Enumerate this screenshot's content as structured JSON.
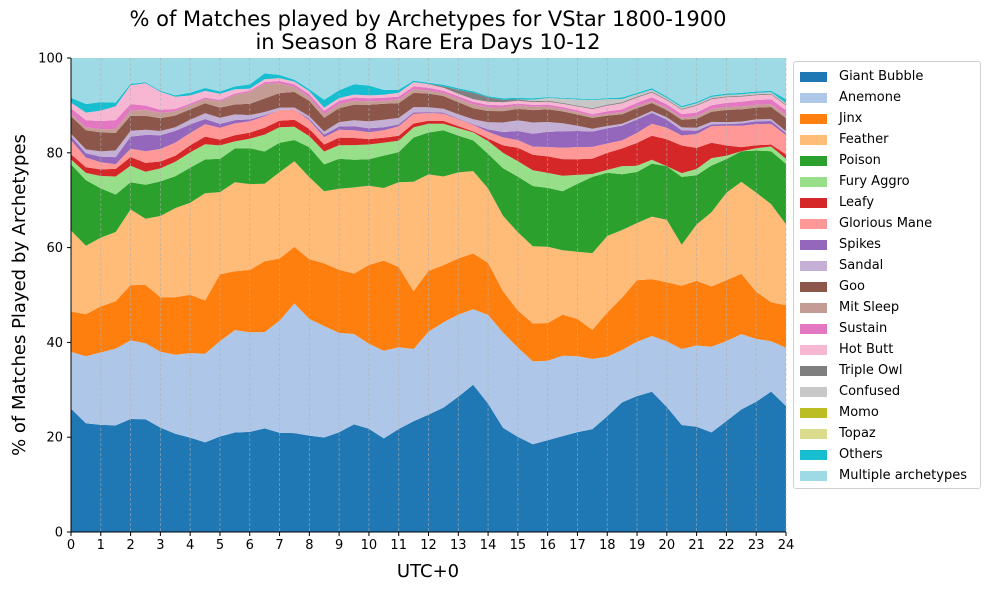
{
  "chart_data": {
    "type": "area",
    "stacked": true,
    "title": "% of Matches played by Archetypes for VStar 1800-1900\nin Season 8 Rare Era Days 10-12",
    "xlabel": "UTC+0",
    "ylabel": "% of Matches Played by Archetypes",
    "xlim": [
      0,
      24
    ],
    "ylim": [
      0,
      100
    ],
    "x_ticks": [
      0,
      1,
      2,
      3,
      4,
      5,
      6,
      7,
      8,
      9,
      10,
      11,
      12,
      13,
      14,
      15,
      16,
      17,
      18,
      19,
      20,
      21,
      22,
      23,
      24
    ],
    "y_ticks": [
      0,
      20,
      40,
      60,
      80,
      100
    ],
    "grid": "vertical dashed",
    "legend_position": "outside right",
    "x": [
      0,
      0.5,
      1,
      1.5,
      2,
      2.5,
      3,
      3.5,
      4,
      4.5,
      5,
      5.5,
      6,
      6.5,
      7,
      7.5,
      8,
      8.5,
      9,
      9.5,
      10,
      10.5,
      11,
      11.5,
      12,
      12.5,
      13,
      13.5,
      14,
      14.5,
      15,
      15.5,
      16,
      16.5,
      17,
      17.5,
      18,
      18.5,
      19,
      19.5,
      20,
      20.5,
      21,
      21.5,
      22,
      22.5,
      23,
      23.5,
      24
    ],
    "series": [
      {
        "name": "Giant Bubble",
        "color": "#1f77b4",
        "values": [
          26,
          22.7,
          22.6,
          22.5,
          23.3,
          24.2,
          22.6,
          21,
          19.9,
          18.8,
          20,
          21,
          21.2,
          21.5,
          21.2,
          21,
          20,
          19,
          20.7,
          22.6,
          21,
          18.8,
          20.8,
          23,
          24.1,
          25.5,
          27.2,
          29.3,
          25.2,
          21,
          19.8,
          18.5,
          19.5,
          20.3,
          21.2,
          22,
          24.5,
          27.2,
          28.5,
          29.6,
          26,
          22.5,
          22,
          21.5,
          23.7,
          26,
          27.6,
          29.2,
          26
        ]
      },
      {
        "name": "Anemone",
        "color": "#aec7e8",
        "values": [
          12,
          14,
          15.3,
          16.2,
          16.2,
          16.3,
          16.4,
          16.9,
          17.8,
          18.6,
          20,
          21.6,
          21.1,
          20,
          23.9,
          27.5,
          24.2,
          22.4,
          20.6,
          19,
          17.3,
          17.6,
          16.5,
          15,
          17,
          17.5,
          16.5,
          15,
          17.4,
          19.2,
          18.6,
          17.5,
          16.9,
          17,
          16.1,
          15,
          12.6,
          11,
          11.4,
          11.8,
          13.6,
          16,
          17,
          18.5,
          17.1,
          16,
          13.3,
          10.5,
          12
        ]
      },
      {
        "name": "Jinx",
        "color": "#ff7f0e",
        "values": [
          8.5,
          8.8,
          9.7,
          10,
          11.4,
          12.5,
          11.8,
          12.3,
          12.3,
          11.2,
          14,
          12.4,
          13.2,
          14.7,
          13.3,
          12,
          12.4,
          12.6,
          13.1,
          12.7,
          16,
          18.1,
          16.2,
          12,
          12.5,
          11.7,
          11.3,
          11.1,
          10.2,
          8.3,
          7.7,
          8,
          8,
          8.7,
          7.9,
          6.2,
          9.4,
          11,
          12.9,
          12,
          12.3,
          13.3,
          13.5,
          13,
          13,
          12.8,
          10,
          8.1,
          8.8
        ]
      },
      {
        "name": "Feather",
        "color": "#ffbb78",
        "values": [
          17.1,
          14.3,
          14.5,
          14.6,
          15.6,
          14.2,
          17.6,
          19.1,
          19.4,
          22.5,
          17.2,
          18.8,
          18.2,
          16.1,
          18.4,
          18.2,
          17,
          14.5,
          16.8,
          18.1,
          16.1,
          14.6,
          17.1,
          22.7,
          19.8,
          18.2,
          17.3,
          16.4,
          14.6,
          15.2,
          16.3,
          16.3,
          16.2,
          13.6,
          14.3,
          16.4,
          16.2,
          14.2,
          12,
          13.2,
          13,
          8.6,
          11.8,
          16,
          18.7,
          19.5,
          21,
          20.4,
          16.7
        ]
      },
      {
        "name": "Poison",
        "color": "#2ca02c",
        "values": [
          14,
          13.7,
          10.4,
          7.9,
          5.6,
          7.3,
          7.5,
          6.8,
          7.4,
          7.1,
          7,
          7.1,
          7.6,
          6.7,
          6.3,
          4.5,
          6.2,
          5.4,
          6.2,
          5.8,
          5.4,
          6.5,
          6.1,
          9.2,
          8.6,
          9.5,
          7.4,
          6.1,
          6.8,
          9.6,
          11.6,
          12.7,
          12.5,
          12.5,
          14.4,
          16.3,
          13.4,
          11.7,
          10.7,
          11.2,
          11.1,
          14.3,
          10.3,
          10.1,
          7.2,
          6.5,
          8.9,
          11,
          12.5
        ]
      },
      {
        "name": "Fury Aggro",
        "color": "#98df8a",
        "values": [
          1,
          1.5,
          2.6,
          3.8,
          3.4,
          2.8,
          2.8,
          3.1,
          3.2,
          3.2,
          2.8,
          1.5,
          2,
          3.5,
          3.3,
          2.8,
          2.3,
          2.6,
          2.8,
          3.1,
          3,
          2.6,
          2.3,
          2.1,
          1.8,
          1.3,
          1.5,
          1.6,
          2.5,
          3.1,
          3.2,
          3.3,
          3.2,
          3.3,
          1.9,
          0.6,
          0.6,
          1.7,
          1.3,
          0.8,
          0,
          0.8,
          1.3,
          1.6,
          0.7,
          0,
          0.5,
          1,
          1
        ]
      },
      {
        "name": "Leafy",
        "color": "#d62728",
        "values": [
          1.1,
          1.2,
          1.4,
          1.6,
          1.8,
          1.9,
          1.5,
          1.3,
          1.5,
          1.6,
          1.2,
          1.3,
          1.3,
          1.4,
          1.4,
          1.5,
          1.5,
          1.4,
          1.6,
          1.5,
          1.1,
          1,
          1,
          0.8,
          0.6,
          0.6,
          0.4,
          0.2,
          0.5,
          1.5,
          2.8,
          3.3,
          3.5,
          3.5,
          3.3,
          3.3,
          3.6,
          3.7,
          4.8,
          5.1,
          5.6,
          5.8,
          4.4,
          3.3,
          2.2,
          0.9,
          0.6,
          0.4,
          0.9
        ]
      },
      {
        "name": "Glorious Mane",
        "color": "#ff9896",
        "values": [
          3,
          2,
          1.5,
          1,
          1.7,
          2.5,
          2.7,
          2.8,
          2.6,
          2.6,
          2.5,
          2.5,
          2.4,
          2.4,
          2.3,
          2.2,
          1.8,
          1.5,
          1.6,
          1.6,
          1.4,
          1.5,
          1.9,
          2,
          1.6,
          1.5,
          1.4,
          1.3,
          1.3,
          1.6,
          1.6,
          1.7,
          2,
          2.4,
          2.6,
          2.5,
          2,
          1.7,
          2.1,
          2.5,
          2.4,
          2.1,
          2.9,
          3.6,
          4.2,
          4.5,
          4.5,
          4.3,
          4
        ]
      },
      {
        "name": "Spikes",
        "color": "#9467bd",
        "values": [
          0.8,
          0.9,
          1.2,
          1.5,
          2.5,
          3.5,
          3,
          2.5,
          1.8,
          1.1,
          0.8,
          0.7,
          0.4,
          0.2,
          0,
          0,
          0.3,
          0.5,
          0.7,
          0.9,
          0.8,
          0.6,
          0.4,
          0.3,
          0.2,
          0.2,
          0.1,
          0.1,
          0.5,
          1.1,
          1.9,
          2.7,
          3.2,
          3.5,
          3.4,
          3.3,
          3.2,
          3.1,
          2.8,
          2.3,
          1.7,
          1.1,
          0.7,
          0.4,
          0.4,
          0.5,
          0.6,
          0.6,
          0.4
        ]
      },
      {
        "name": "Sandal",
        "color": "#c5b0d5",
        "values": [
          0.5,
          0.8,
          1.1,
          1.4,
          1.2,
          1.1,
          0.9,
          0.8,
          1,
          1.2,
          1.3,
          1.2,
          0.9,
          0.7,
          0.5,
          0.4,
          0.5,
          0.6,
          0.9,
          1.2,
          1.4,
          1.5,
          1.3,
          1.1,
          1,
          0.8,
          0.9,
          1,
          1.4,
          1.9,
          2.2,
          2.4,
          2.1,
          1.7,
          1.1,
          0.6,
          0.5,
          0.4,
          0.4,
          0.4,
          0.5,
          0.6,
          0.6,
          0.5,
          0.4,
          0.4,
          0.4,
          0.4,
          0.4
        ]
      },
      {
        "name": "Goo",
        "color": "#8c564b",
        "values": [
          3.7,
          4,
          4,
          3.7,
          3.1,
          3,
          2.8,
          2.5,
          2.2,
          2.1,
          2.1,
          2.1,
          2.4,
          2.8,
          3.1,
          3.3,
          3.2,
          2.8,
          2.9,
          3.3,
          3.4,
          3.2,
          3,
          3,
          2.8,
          2.6,
          2.4,
          2.2,
          2.2,
          2.3,
          2.4,
          2.6,
          2.7,
          2.5,
          2.4,
          2.3,
          2.2,
          2,
          2,
          1.7,
          1.5,
          1.6,
          1.9,
          2.2,
          2.6,
          2.6,
          2.5,
          2.5,
          2.7
        ]
      },
      {
        "name": "Mit Sleep",
        "color": "#c49c94",
        "values": [
          0.5,
          0.6,
          0.7,
          0.8,
          1,
          1.3,
          1.1,
          0.9,
          0.8,
          0.9,
          1.3,
          2,
          2.5,
          3,
          2.1,
          1,
          0.8,
          0.7,
          0.8,
          0.8,
          0.7,
          0.6,
          0.7,
          0.7,
          0.6,
          0.6,
          0.7,
          0.8,
          0.7,
          0.7,
          0.7,
          0.7,
          0.6,
          0.5,
          0.5,
          0.4,
          0.4,
          0.4,
          0.4,
          0.4,
          0.4,
          0.4,
          0.5,
          0.6,
          0.6,
          0.6,
          0.6,
          0.6,
          0.6
        ]
      },
      {
        "name": "Sustain",
        "color": "#e377c2",
        "values": [
          1.2,
          1.5,
          1.7,
          1.9,
          1.4,
          0.9,
          0.7,
          0.5,
          0.4,
          0.3,
          0.3,
          0.3,
          0.3,
          0.4,
          0.5,
          0.6,
          0.6,
          0.7,
          0.7,
          0.7,
          0.6,
          0.6,
          0.6,
          0.6,
          0.6,
          0.5,
          0.5,
          0.5,
          0.5,
          0.5,
          0.4,
          0.4,
          0.4,
          0.4,
          0.4,
          0.4,
          0.5,
          0.6,
          0.7,
          0.8,
          0.8,
          0.8,
          0.8,
          0.8,
          0.9,
          1,
          1,
          1,
          1
        ]
      },
      {
        "name": "Hot Butt",
        "color": "#f7b6d2",
        "values": [
          1.2,
          1.6,
          2.2,
          2.9,
          3.9,
          4.8,
          3.9,
          2.6,
          1.7,
          1.4,
          1.3,
          0.9,
          0.4,
          0.6,
          0.6,
          0.6,
          0.6,
          0.6,
          0.6,
          0.6,
          0.6,
          0.6,
          0.8,
          0.9,
          0.7,
          0.6,
          0.5,
          0.5,
          0.6,
          0.6,
          0.6,
          0.6,
          0.6,
          0.7,
          0.8,
          1.1,
          1.2,
          1.3,
          1.1,
          1,
          0.8,
          0.9,
          1.4,
          1.3,
          1.2,
          1.1,
          1,
          1,
          1
        ]
      },
      {
        "name": "Triple Owl",
        "color": "#7f7f7f",
        "values": [
          0,
          0,
          0,
          0,
          0,
          0,
          0,
          0,
          0,
          0,
          0,
          0,
          0,
          0,
          0,
          0,
          0,
          0,
          0,
          0,
          0,
          0,
          0,
          0,
          0.1,
          0.3,
          0.8,
          1.3,
          0.9,
          0.5,
          0.3,
          0.2,
          0.2,
          0.2,
          0.2,
          0.2,
          0.2,
          0.2,
          0.2,
          0.2,
          0.2,
          0.2,
          0.2,
          0.2,
          0.2,
          0.2,
          0.2,
          0.2,
          0.2
        ]
      },
      {
        "name": "Confused",
        "color": "#c7c7c7",
        "values": [
          0,
          0,
          0,
          0,
          0,
          0,
          0,
          0,
          0,
          0,
          0,
          0,
          0,
          0,
          0,
          0,
          0,
          0,
          0,
          0,
          0,
          0,
          0,
          0,
          0,
          0,
          0,
          0,
          0,
          0,
          0,
          0.3,
          0.6,
          0.9,
          1.3,
          1.7,
          1.2,
          0.7,
          0.5,
          0.4,
          0.3,
          0.3,
          0.3,
          0.3,
          0.3,
          0.3,
          0.3,
          0.3,
          0.3
        ]
      },
      {
        "name": "Momo",
        "color": "#bcbd22",
        "values": [
          0,
          0,
          0,
          0,
          0,
          0,
          0,
          0,
          0,
          0,
          0,
          0,
          0,
          0,
          0,
          0,
          0,
          0,
          0,
          0,
          0,
          0,
          0,
          0,
          0,
          0,
          0,
          0,
          0,
          0,
          0,
          0,
          0,
          0,
          0,
          0,
          0,
          0,
          0,
          0,
          0,
          0,
          0,
          0,
          0,
          0,
          0,
          0,
          0
        ]
      },
      {
        "name": "Topaz",
        "color": "#dbdb8d",
        "values": [
          0,
          0,
          0,
          0,
          0,
          0,
          0,
          0,
          0,
          0,
          0,
          0,
          0,
          0,
          0,
          0,
          0,
          0,
          0,
          0,
          0,
          0,
          0,
          0,
          0,
          0,
          0,
          0,
          0,
          0,
          0,
          0,
          0,
          0,
          0,
          0,
          0,
          0,
          0,
          0,
          0,
          0,
          0,
          0,
          0,
          0,
          0,
          0,
          0
        ]
      },
      {
        "name": "Others",
        "color": "#17becf",
        "values": [
          1,
          1.8,
          1.8,
          0.8,
          0.3,
          0.2,
          0.2,
          0.3,
          0.6,
          0.6,
          0.5,
          0.6,
          0.9,
          1.2,
          0.7,
          0.4,
          0.4,
          1.6,
          1.6,
          2.2,
          2,
          1,
          0.6,
          0.3,
          0.2,
          0.3,
          0.3,
          0.3,
          0.2,
          0.3,
          0.3,
          0.3,
          0.2,
          0.2,
          0.2,
          0.2,
          0.2,
          0.3,
          0.3,
          0.3,
          0.3,
          0.3,
          0.3,
          0.3,
          0.3,
          0.3,
          0.3,
          0.3,
          0.8
        ]
      },
      {
        "name": "Multiple archetypes",
        "color": "#9edae5",
        "values": [
          8.4,
          9.6,
          9.3,
          9.4,
          5.3,
          5.2,
          7.1,
          8,
          7.3,
          6.3,
          7,
          6,
          5.6,
          3.2,
          3.6,
          4.6,
          6.5,
          8.4,
          6.7,
          5.5,
          5.6,
          6.4,
          6.4,
          4.7,
          5.1,
          5.5,
          6.1,
          6.6,
          7.5,
          8.1,
          8.3,
          8.5,
          8.3,
          8.4,
          8.6,
          8.8,
          8.5,
          8.3,
          7.3,
          6.4,
          8,
          10.1,
          9.2,
          8.1,
          7.6,
          7.4,
          7.1,
          6.8,
          8.5
        ]
      }
    ]
  }
}
